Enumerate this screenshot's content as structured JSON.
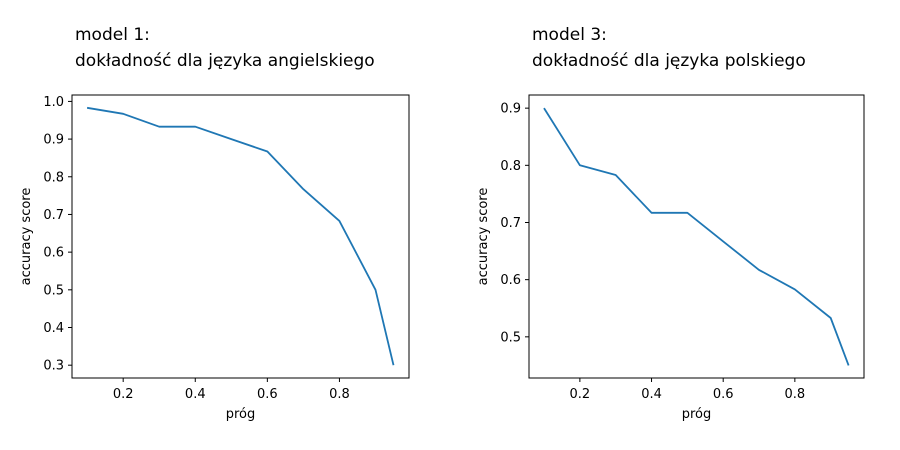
{
  "chart_data": [
    {
      "type": "line",
      "title_line1": "model 1:",
      "title_line2": "dokładność dla języka angielskiego",
      "xlabel": "próg",
      "ylabel": "accuracy score",
      "x": [
        0.1,
        0.2,
        0.3,
        0.4,
        0.5,
        0.6,
        0.7,
        0.8,
        0.9,
        0.95
      ],
      "y": [
        0.983,
        0.967,
        0.933,
        0.933,
        0.9,
        0.867,
        0.767,
        0.683,
        0.5,
        0.3
      ],
      "xlim": [
        0.058,
        0.993
      ],
      "ylim": [
        0.266,
        1.017
      ],
      "xticks": [
        0.2,
        0.4,
        0.6,
        0.8
      ],
      "xtick_labels": [
        "0.2",
        "0.4",
        "0.6",
        "0.8"
      ],
      "yticks": [
        0.3,
        0.4,
        0.5,
        0.6,
        0.7,
        0.8,
        0.9,
        1.0
      ],
      "ytick_labels": [
        "0.3",
        "0.4",
        "0.5",
        "0.6",
        "0.7",
        "0.8",
        "0.9",
        "1.0"
      ],
      "color": "#1f77b4",
      "grid": false
    },
    {
      "type": "line",
      "title_line1": "model 3:",
      "title_line2": "dokładność dla języka polskiego",
      "xlabel": "próg",
      "ylabel": "accuracy score",
      "x": [
        0.1,
        0.2,
        0.3,
        0.4,
        0.5,
        0.6,
        0.7,
        0.8,
        0.9,
        0.95
      ],
      "y": [
        0.9,
        0.8,
        0.783,
        0.717,
        0.717,
        0.667,
        0.617,
        0.583,
        0.533,
        0.45
      ],
      "xlim": [
        0.058,
        0.993
      ],
      "ylim": [
        0.428,
        0.923
      ],
      "xticks": [
        0.2,
        0.4,
        0.6,
        0.8
      ],
      "xtick_labels": [
        "0.2",
        "0.4",
        "0.6",
        "0.8"
      ],
      "yticks": [
        0.5,
        0.6,
        0.7,
        0.8,
        0.9
      ],
      "ytick_labels": [
        "0.5",
        "0.6",
        "0.7",
        "0.8",
        "0.9"
      ],
      "color": "#1f77b4",
      "grid": false
    }
  ]
}
